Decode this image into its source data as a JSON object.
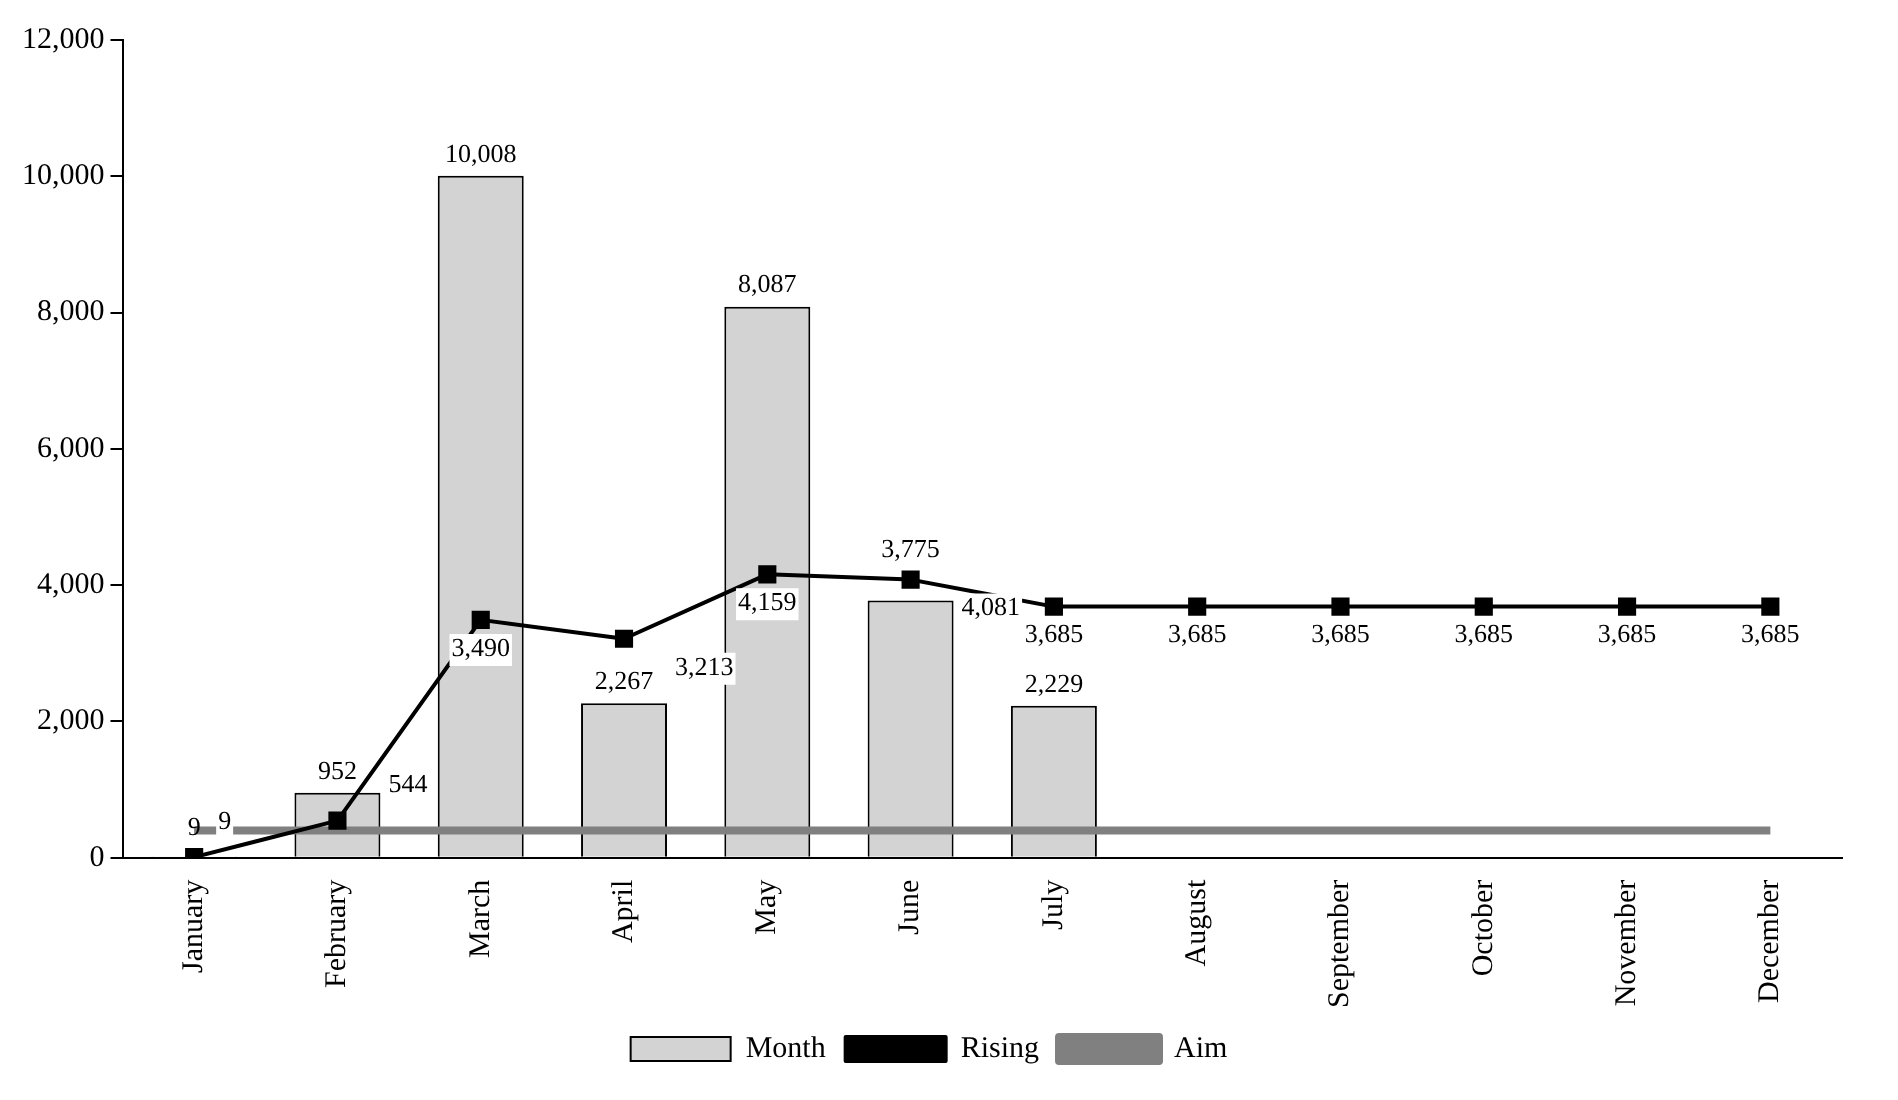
{
  "chart_data": {
    "type": "bar",
    "categories": [
      "January",
      "February",
      "March",
      "April",
      "May",
      "June",
      "July",
      "August",
      "September",
      "October",
      "November",
      "December"
    ],
    "series": [
      {
        "name": "Month",
        "type": "bar",
        "color": "#d3d3d3",
        "values": [
          9,
          952,
          10008,
          2267,
          8087,
          3775,
          2229,
          null,
          null,
          null,
          null,
          null
        ],
        "value_labels": [
          "9",
          "952",
          "10,008",
          "2,267",
          "8,087",
          "3,775",
          "2,229",
          null,
          null,
          null,
          null,
          null
        ]
      },
      {
        "name": "Rising",
        "type": "line",
        "color": "#000000",
        "marker": "square",
        "values": [
          9,
          544,
          3490,
          3213,
          4159,
          4081,
          3685,
          3685,
          3685,
          3685,
          3685,
          3685
        ],
        "value_labels": [
          "9",
          "544",
          "3,490",
          "3,213",
          "4,159",
          "4,081",
          "3,685",
          "3,685",
          "3,685",
          "3,685",
          "3,685",
          "3,685"
        ]
      },
      {
        "name": "Aim",
        "type": "line",
        "color": "#808080",
        "marker": "none",
        "values": [
          400,
          400,
          400,
          400,
          400,
          400,
          400,
          400,
          400,
          400,
          400,
          400
        ]
      }
    ],
    "ylim": [
      0,
      12000
    ],
    "yticks": [
      {
        "value": 0,
        "label": "0"
      },
      {
        "value": 2000,
        "label": "2,000"
      },
      {
        "value": 4000,
        "label": "4,000"
      },
      {
        "value": 6000,
        "label": "6,000"
      },
      {
        "value": 8000,
        "label": "8,000"
      },
      {
        "value": 10000,
        "label": "10,000"
      },
      {
        "value": 12000,
        "label": "12,000"
      }
    ],
    "grid": false,
    "legend": "bottom"
  }
}
